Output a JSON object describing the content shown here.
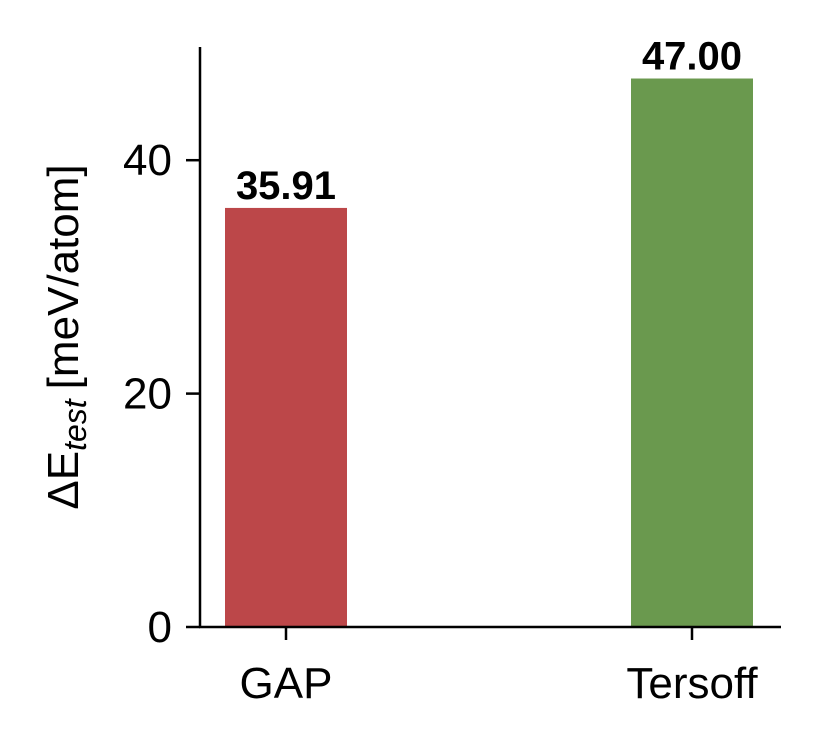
{
  "chart_data": {
    "type": "bar",
    "title": "",
    "xlabel": "",
    "ylabel": "ΔE",
    "ylabel_subscript": "test",
    "ylabel_unit": "[meV/atom]",
    "categories": [
      "GAP",
      "Tersoff"
    ],
    "values": [
      35.91,
      47.0
    ],
    "data_labels": [
      "35.91",
      "47.00"
    ],
    "colors": [
      "#bc4749",
      "#6a994e"
    ],
    "ylim": [
      0,
      49.7
    ],
    "yticks": [
      0,
      20,
      40
    ],
    "ytick_labels": [
      "0",
      "20",
      "40"
    ],
    "grid": false
  }
}
